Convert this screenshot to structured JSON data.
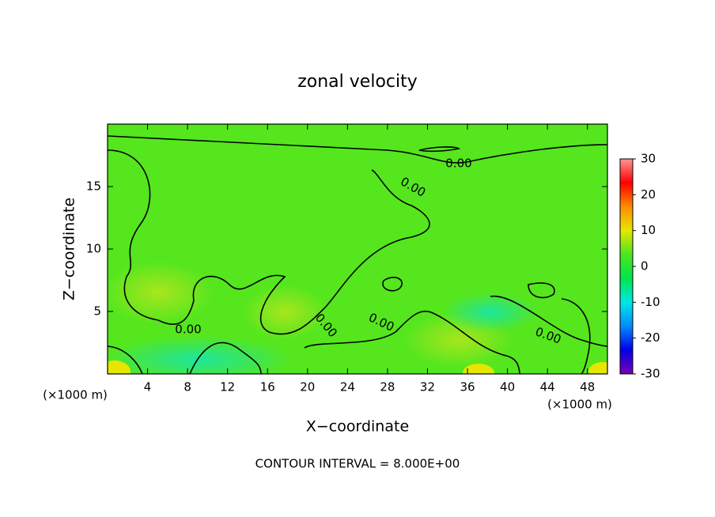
{
  "chart_data": {
    "type": "contour",
    "title": "zonal velocity",
    "xlabel": "X−coordinate",
    "ylabel": "Z−coordinate",
    "x_unit": "(×1000 m)",
    "footer": "CONTOUR INTERVAL = 8.000E+00",
    "xlim": [
      0,
      50
    ],
    "xticks": [
      4,
      8,
      12,
      16,
      20,
      24,
      28,
      32,
      36,
      40,
      44,
      48
    ],
    "ylim": [
      0,
      20
    ],
    "yticks": [
      5,
      10,
      15
    ],
    "clim": [
      -30,
      30
    ],
    "cticks": [
      30,
      20,
      10,
      0,
      -10,
      -20,
      -30
    ],
    "colormap": [
      "#7a00b4",
      "#0000e6",
      "#008cff",
      "#00e6e6",
      "#00e64b",
      "#4be61e",
      "#e6e600",
      "#ff8c00",
      "#ff0000",
      "#ff9696"
    ],
    "contour_levels": [
      {
        "value": 0,
        "label": "0.00"
      }
    ]
  }
}
